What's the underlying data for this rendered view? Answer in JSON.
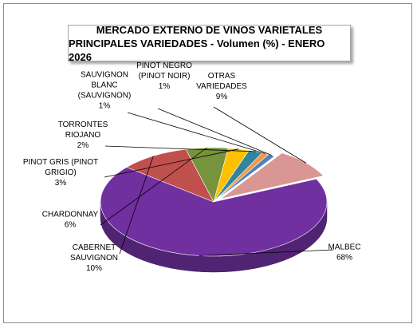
{
  "title_line1": "MERCADO EXTERNO DE VINOS VARIETALES",
  "title_line2": "PRINCIPALES VARIEDADES - Volumen (%) - ENERO 2026",
  "chart_data": {
    "type": "pie",
    "title": "MERCADO EXTERNO DE VINOS VARIETALES PRINCIPALES VARIEDADES - Volumen (%) - ENERO 2026",
    "slices": [
      {
        "name": "MALBEC",
        "label_lines": [
          "MALBEC"
        ],
        "value": 68,
        "value_label": "68%",
        "color": "#7030a0"
      },
      {
        "name": "CABERNET SAUVIGNON",
        "label_lines": [
          "CABERNET",
          "SAUVIGNON"
        ],
        "value": 10,
        "value_label": "10%",
        "color": "#c0504d"
      },
      {
        "name": "CHARDONNAY",
        "label_lines": [
          "CHARDONNAY"
        ],
        "value": 6,
        "value_label": "6%",
        "color": "#77933c"
      },
      {
        "name": "PINOT GRIS (PINOT GRIGIO)",
        "label_lines": [
          "PINOT GRIS (PINOT",
          "GRIGIO)"
        ],
        "value": 3,
        "value_label": "3%",
        "color": "#ffc000"
      },
      {
        "name": "TORRONTES RIOJANO",
        "label_lines": [
          "TORRONTES",
          "RIOJANO"
        ],
        "value": 2,
        "value_label": "2%",
        "color": "#31859c"
      },
      {
        "name": "SAUVIGNON BLANC (SAUVIGNON)",
        "label_lines": [
          "SAUVIGNON",
          "BLANC",
          "(SAUVIGNON)"
        ],
        "value": 1,
        "value_label": "1%",
        "color": "#f79646"
      },
      {
        "name": "PINOT NEGRO (PINOT NOIR)",
        "label_lines": [
          "PINOT NEGRO",
          "(PINOT NOIR)"
        ],
        "value": 1,
        "value_label": "1%",
        "color": "#4f81bd"
      },
      {
        "name": "OTRAS VARIEDADES",
        "label_lines": [
          "OTRAS",
          "VARIEDADES"
        ],
        "value": 9,
        "value_label": "9%",
        "color": "#d99694"
      }
    ],
    "style": "3d-pie",
    "legend": "none",
    "exploded_slice": "OTRAS VARIEDADES"
  }
}
